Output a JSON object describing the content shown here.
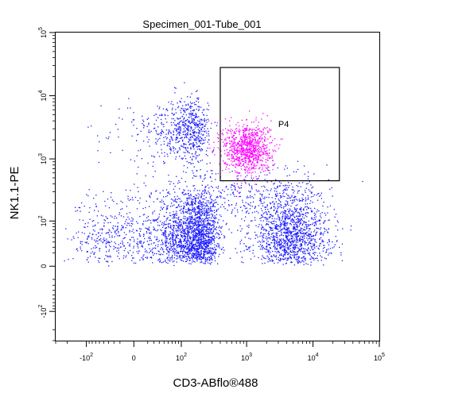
{
  "chart_data": {
    "type": "scatter",
    "title": "Specimen_001-Tube_001",
    "xlabel": "CD3-ABflo®488",
    "ylabel": "NK1.1-PE",
    "x_scale": "biexponential",
    "y_scale": "biexponential",
    "xlim": [
      -300,
      100000
    ],
    "ylim": [
      -300,
      100000
    ],
    "x_ticks": [
      {
        "value": -100,
        "label": "-10",
        "exp": "2"
      },
      {
        "value": 0,
        "label": "0",
        "exp": ""
      },
      {
        "value": 100,
        "label": "10",
        "exp": "2"
      },
      {
        "value": 1000,
        "label": "10",
        "exp": "3"
      },
      {
        "value": 10000,
        "label": "10",
        "exp": "4"
      },
      {
        "value": 100000,
        "label": "10",
        "exp": "5"
      }
    ],
    "y_ticks": [
      {
        "value": -100,
        "label": "-10",
        "exp": "2"
      },
      {
        "value": 0,
        "label": "0",
        "exp": ""
      },
      {
        "value": 100,
        "label": "10",
        "exp": "2"
      },
      {
        "value": 1000,
        "label": "10",
        "exp": "3"
      },
      {
        "value": 10000,
        "label": "10",
        "exp": "4"
      },
      {
        "value": 100000,
        "label": "10",
        "exp": "5"
      }
    ],
    "gate": {
      "name": "P4",
      "x_range": [
        400,
        25000
      ],
      "y_range": [
        450,
        28000
      ],
      "color": "#000000"
    },
    "populations": [
      {
        "color": "#1a1aff",
        "center": [
          130,
          60
        ],
        "spread": [
          110,
          0.4
        ],
        "count": 2300
      },
      {
        "color": "#1a1aff",
        "center": [
          4500,
          60
        ],
        "spread": [
          0.3,
          0.4
        ],
        "count": 1400
      },
      {
        "color": "#1a1aff",
        "center": [
          120,
          2800
        ],
        "spread": [
          70,
          0.25
        ],
        "count": 700
      },
      {
        "color": "#1a1aff",
        "center": [
          900,
          250
        ],
        "spread": [
          0.45,
          0.22
        ],
        "count": 250
      },
      {
        "color": "#ff00ff",
        "center": [
          1000,
          1500
        ],
        "spread": [
          0.18,
          0.2
        ],
        "count": 950
      }
    ],
    "grid": false,
    "legend": "none"
  }
}
